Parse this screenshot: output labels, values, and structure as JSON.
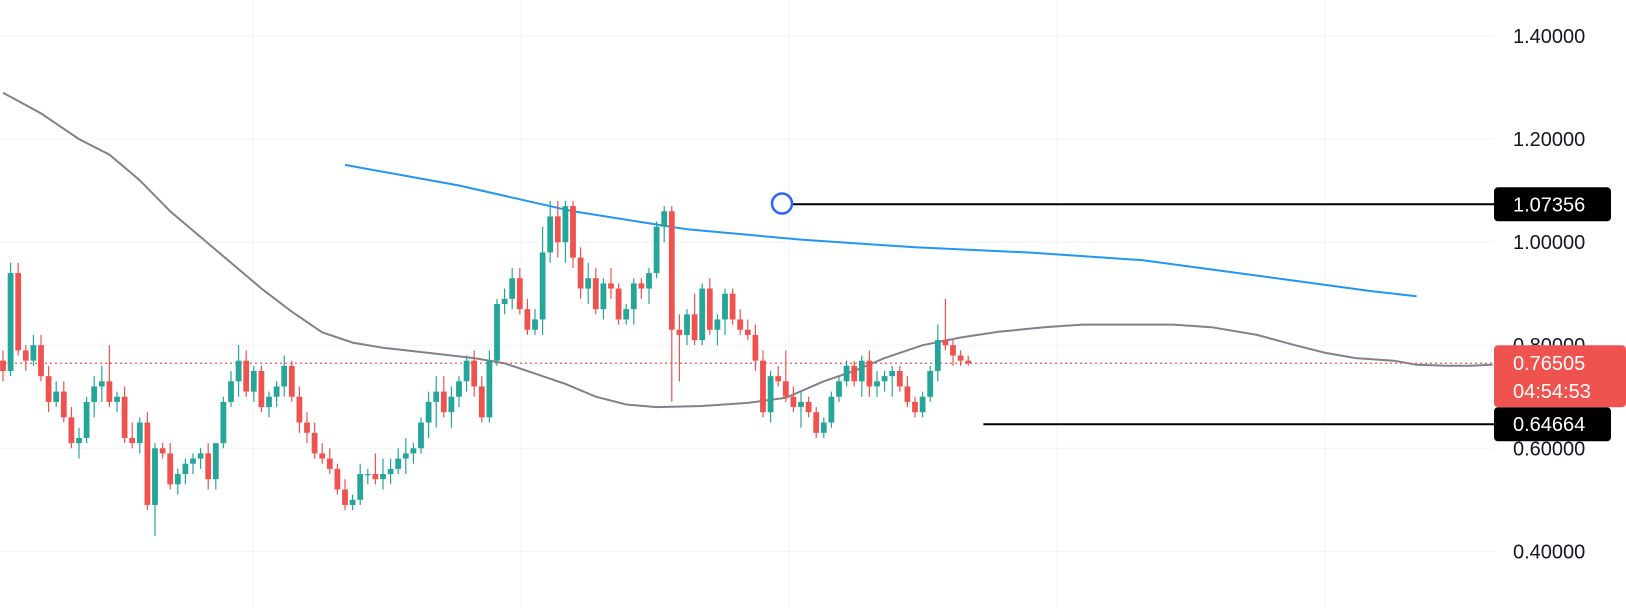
{
  "chart_data": {
    "type": "candlestick",
    "title": "",
    "xlabel": "",
    "ylabel": "",
    "ylim": [
      0.29,
      1.47
    ],
    "y_ticks": [
      "0.40000",
      "0.60000",
      "0.80000",
      "1.00000",
      "1.20000",
      "1.40000"
    ],
    "grid": true,
    "colors": {
      "up": "#26a69a",
      "down": "#ef5350",
      "ma_fast": "#848089",
      "ma_slow": "#2196f3",
      "level": "#000000",
      "price_line": "#ef5350",
      "grid": "#f0f3fa",
      "marker": "#2962ff"
    },
    "candles": [
      [
        0.77,
        0.79,
        0.73,
        0.75
      ],
      [
        0.75,
        0.96,
        0.74,
        0.94
      ],
      [
        0.94,
        0.96,
        0.78,
        0.79
      ],
      [
        0.79,
        0.8,
        0.75,
        0.77
      ],
      [
        0.77,
        0.82,
        0.76,
        0.8
      ],
      [
        0.8,
        0.82,
        0.73,
        0.74
      ],
      [
        0.74,
        0.76,
        0.67,
        0.69
      ],
      [
        0.69,
        0.73,
        0.68,
        0.71
      ],
      [
        0.71,
        0.73,
        0.65,
        0.66
      ],
      [
        0.66,
        0.68,
        0.6,
        0.61
      ],
      [
        0.61,
        0.64,
        0.58,
        0.62
      ],
      [
        0.62,
        0.7,
        0.61,
        0.69
      ],
      [
        0.69,
        0.74,
        0.66,
        0.72
      ],
      [
        0.72,
        0.76,
        0.69,
        0.73
      ],
      [
        0.73,
        0.8,
        0.68,
        0.69
      ],
      [
        0.69,
        0.71,
        0.67,
        0.7
      ],
      [
        0.7,
        0.72,
        0.61,
        0.62
      ],
      [
        0.62,
        0.65,
        0.6,
        0.61
      ],
      [
        0.61,
        0.66,
        0.59,
        0.65
      ],
      [
        0.65,
        0.67,
        0.48,
        0.49
      ],
      [
        0.49,
        0.61,
        0.43,
        0.6
      ],
      [
        0.6,
        0.61,
        0.58,
        0.59
      ],
      [
        0.59,
        0.61,
        0.52,
        0.53
      ],
      [
        0.53,
        0.56,
        0.51,
        0.55
      ],
      [
        0.55,
        0.58,
        0.53,
        0.57
      ],
      [
        0.57,
        0.59,
        0.55,
        0.58
      ],
      [
        0.58,
        0.6,
        0.56,
        0.59
      ],
      [
        0.59,
        0.61,
        0.52,
        0.54
      ],
      [
        0.54,
        0.61,
        0.52,
        0.61
      ],
      [
        0.61,
        0.7,
        0.6,
        0.69
      ],
      [
        0.69,
        0.75,
        0.68,
        0.73
      ],
      [
        0.73,
        0.8,
        0.7,
        0.77
      ],
      [
        0.77,
        0.79,
        0.7,
        0.71
      ],
      [
        0.71,
        0.76,
        0.69,
        0.75
      ],
      [
        0.75,
        0.76,
        0.67,
        0.68
      ],
      [
        0.68,
        0.71,
        0.66,
        0.7
      ],
      [
        0.7,
        0.73,
        0.68,
        0.72
      ],
      [
        0.72,
        0.78,
        0.7,
        0.76
      ],
      [
        0.76,
        0.77,
        0.69,
        0.7
      ],
      [
        0.7,
        0.72,
        0.63,
        0.65
      ],
      [
        0.65,
        0.67,
        0.61,
        0.63
      ],
      [
        0.63,
        0.65,
        0.58,
        0.59
      ],
      [
        0.59,
        0.61,
        0.57,
        0.58
      ],
      [
        0.58,
        0.6,
        0.55,
        0.56
      ],
      [
        0.56,
        0.57,
        0.51,
        0.52
      ],
      [
        0.52,
        0.54,
        0.48,
        0.49
      ],
      [
        0.49,
        0.51,
        0.48,
        0.5
      ],
      [
        0.5,
        0.57,
        0.49,
        0.55
      ],
      [
        0.55,
        0.56,
        0.53,
        0.55
      ],
      [
        0.55,
        0.59,
        0.53,
        0.54
      ],
      [
        0.54,
        0.58,
        0.52,
        0.55
      ],
      [
        0.55,
        0.58,
        0.53,
        0.56
      ],
      [
        0.56,
        0.6,
        0.55,
        0.58
      ],
      [
        0.58,
        0.62,
        0.55,
        0.59
      ],
      [
        0.59,
        0.61,
        0.57,
        0.6
      ],
      [
        0.6,
        0.66,
        0.59,
        0.65
      ],
      [
        0.65,
        0.71,
        0.62,
        0.69
      ],
      [
        0.69,
        0.74,
        0.64,
        0.71
      ],
      [
        0.71,
        0.74,
        0.66,
        0.67
      ],
      [
        0.67,
        0.72,
        0.64,
        0.7
      ],
      [
        0.7,
        0.74,
        0.68,
        0.73
      ],
      [
        0.73,
        0.78,
        0.71,
        0.77
      ],
      [
        0.77,
        0.79,
        0.7,
        0.72
      ],
      [
        0.72,
        0.74,
        0.65,
        0.66
      ],
      [
        0.66,
        0.79,
        0.65,
        0.77
      ],
      [
        0.77,
        0.89,
        0.76,
        0.88
      ],
      [
        0.88,
        0.91,
        0.86,
        0.89
      ],
      [
        0.89,
        0.95,
        0.87,
        0.93
      ],
      [
        0.93,
        0.95,
        0.86,
        0.87
      ],
      [
        0.87,
        0.89,
        0.82,
        0.83
      ],
      [
        0.83,
        0.87,
        0.82,
        0.85
      ],
      [
        0.85,
        1.03,
        0.82,
        0.98
      ],
      [
        0.98,
        1.08,
        0.96,
        1.05
      ],
      [
        1.05,
        1.08,
        0.97,
        1.0
      ],
      [
        1.0,
        1.08,
        0.96,
        1.07
      ],
      [
        1.07,
        1.08,
        0.95,
        0.97
      ],
      [
        0.97,
        0.99,
        0.89,
        0.91
      ],
      [
        0.91,
        0.96,
        0.88,
        0.93
      ],
      [
        0.93,
        0.95,
        0.86,
        0.87
      ],
      [
        0.87,
        0.93,
        0.85,
        0.92
      ],
      [
        0.92,
        0.95,
        0.89,
        0.91
      ],
      [
        0.91,
        0.92,
        0.84,
        0.85
      ],
      [
        0.85,
        0.88,
        0.84,
        0.87
      ],
      [
        0.87,
        0.93,
        0.84,
        0.92
      ],
      [
        0.92,
        0.93,
        0.89,
        0.91
      ],
      [
        0.91,
        0.95,
        0.88,
        0.94
      ],
      [
        0.94,
        1.04,
        0.93,
        1.03
      ],
      [
        1.03,
        1.07,
        1.0,
        1.06
      ],
      [
        1.06,
        1.07,
        0.69,
        0.83
      ],
      [
        0.83,
        0.86,
        0.73,
        0.82
      ],
      [
        0.82,
        0.87,
        0.8,
        0.86
      ],
      [
        0.86,
        0.9,
        0.8,
        0.81
      ],
      [
        0.81,
        0.92,
        0.8,
        0.91
      ],
      [
        0.91,
        0.93,
        0.82,
        0.83
      ],
      [
        0.83,
        0.86,
        0.8,
        0.85
      ],
      [
        0.85,
        0.91,
        0.82,
        0.9
      ],
      [
        0.9,
        0.91,
        0.84,
        0.85
      ],
      [
        0.85,
        0.87,
        0.82,
        0.83
      ],
      [
        0.83,
        0.85,
        0.81,
        0.82
      ],
      [
        0.82,
        0.84,
        0.75,
        0.77
      ],
      [
        0.77,
        0.79,
        0.66,
        0.67
      ],
      [
        0.67,
        0.75,
        0.65,
        0.74
      ],
      [
        0.74,
        0.76,
        0.72,
        0.73
      ],
      [
        0.73,
        0.79,
        0.69,
        0.7
      ],
      [
        0.7,
        0.72,
        0.67,
        0.68
      ],
      [
        0.68,
        0.71,
        0.64,
        0.69
      ],
      [
        0.69,
        0.7,
        0.66,
        0.67
      ],
      [
        0.67,
        0.68,
        0.62,
        0.63
      ],
      [
        0.63,
        0.66,
        0.62,
        0.65
      ],
      [
        0.65,
        0.71,
        0.64,
        0.7
      ],
      [
        0.7,
        0.74,
        0.69,
        0.73
      ],
      [
        0.73,
        0.77,
        0.72,
        0.76
      ],
      [
        0.76,
        0.77,
        0.72,
        0.73
      ],
      [
        0.73,
        0.78,
        0.7,
        0.77
      ],
      [
        0.77,
        0.79,
        0.7,
        0.72
      ],
      [
        0.72,
        0.75,
        0.7,
        0.73
      ],
      [
        0.73,
        0.75,
        0.71,
        0.74
      ],
      [
        0.74,
        0.76,
        0.7,
        0.75
      ],
      [
        0.75,
        0.76,
        0.71,
        0.72
      ],
      [
        0.72,
        0.74,
        0.68,
        0.69
      ],
      [
        0.69,
        0.7,
        0.66,
        0.67
      ],
      [
        0.67,
        0.71,
        0.66,
        0.7
      ],
      [
        0.7,
        0.76,
        0.69,
        0.75
      ],
      [
        0.75,
        0.84,
        0.73,
        0.81
      ],
      [
        0.81,
        0.89,
        0.79,
        0.8
      ],
      [
        0.8,
        0.81,
        0.76,
        0.78
      ],
      [
        0.78,
        0.79,
        0.76,
        0.77
      ],
      [
        0.77,
        0.78,
        0.76,
        0.765
      ]
    ],
    "ma_fast": [
      [
        0,
        1.29
      ],
      [
        5,
        1.25
      ],
      [
        10,
        1.2
      ],
      [
        14,
        1.17
      ],
      [
        18,
        1.12
      ],
      [
        22,
        1.06
      ],
      [
        26,
        1.01
      ],
      [
        30,
        0.96
      ],
      [
        34,
        0.91
      ],
      [
        38,
        0.865
      ],
      [
        42,
        0.825
      ],
      [
        46,
        0.805
      ],
      [
        50,
        0.795
      ],
      [
        56,
        0.785
      ],
      [
        62,
        0.775
      ],
      [
        66,
        0.765
      ],
      [
        70,
        0.745
      ],
      [
        74,
        0.725
      ],
      [
        78,
        0.7
      ],
      [
        82,
        0.685
      ],
      [
        86,
        0.68
      ],
      [
        92,
        0.682
      ],
      [
        98,
        0.688
      ],
      [
        103,
        0.698
      ],
      [
        108,
        0.73
      ],
      [
        112,
        0.75
      ],
      [
        116,
        0.775
      ],
      [
        121,
        0.8
      ],
      [
        126,
        0.815
      ],
      [
        131,
        0.826
      ],
      [
        137,
        0.835
      ],
      [
        142,
        0.84
      ],
      [
        148,
        0.84
      ],
      [
        154,
        0.84
      ],
      [
        159,
        0.835
      ],
      [
        165,
        0.82
      ],
      [
        170,
        0.8
      ],
      [
        174,
        0.785
      ],
      [
        178,
        0.775
      ],
      [
        183,
        0.77
      ],
      [
        186,
        0.762
      ],
      [
        190,
        0.76
      ],
      [
        193,
        0.76
      ],
      [
        196,
        0.762
      ]
    ],
    "ma_slow": [
      [
        45,
        1.15
      ],
      [
        60,
        1.11
      ],
      [
        75,
        1.06
      ],
      [
        90,
        1.025
      ],
      [
        105,
        1.005
      ],
      [
        120,
        0.99
      ],
      [
        135,
        0.98
      ],
      [
        150,
        0.965
      ],
      [
        160,
        0.945
      ],
      [
        170,
        0.925
      ],
      [
        180,
        0.905
      ],
      [
        186,
        0.895
      ]
    ],
    "levels": [
      {
        "value": 1.07356,
        "label": "1.07356",
        "from_index": 103
      },
      {
        "value": 0.64664,
        "label": "0.64664",
        "from_index": 129
      }
    ],
    "marker": {
      "index": 102.5,
      "value": 1.075
    },
    "last_price": {
      "value": 0.76505,
      "label": "0.76505",
      "countdown": "04:54:53"
    }
  }
}
